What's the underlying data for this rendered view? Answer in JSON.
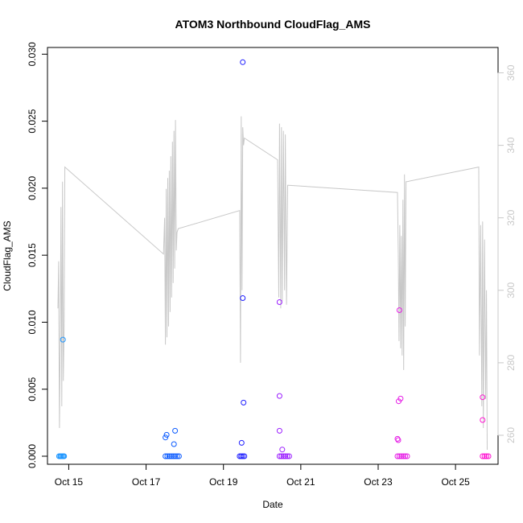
{
  "chart_data": {
    "type": "scatter",
    "title": "ATOM3 Northbound CloudFlag_AMS",
    "xlabel": "Date",
    "ylabel": "CloudFlag_AMS",
    "x_tick_labels": [
      "Oct 15",
      "Oct 17",
      "Oct 19",
      "Oct 21",
      "Oct 23",
      "Oct 25"
    ],
    "x_ticks_day": [
      15,
      17,
      19,
      21,
      23,
      25
    ],
    "xlim_day": [
      14.45,
      26.1
    ],
    "ylim": [
      -0.0006,
      0.0305
    ],
    "y_ticks": [
      0.0,
      0.005,
      0.01,
      0.015,
      0.02,
      0.025,
      0.03
    ],
    "y_tick_labels": [
      "0.000",
      "0.005",
      "0.010",
      "0.015",
      "0.020",
      "0.025",
      "0.030"
    ],
    "right_axis": {
      "ylim": [
        252,
        367
      ],
      "ticks": [
        260,
        280,
        300,
        320,
        340,
        360
      ],
      "tick_labels": [
        "260",
        "280",
        "300",
        "320",
        "340",
        "360"
      ],
      "color": "#c8c8c8"
    },
    "points": [
      {
        "day": 14.85,
        "y": 0.0087,
        "color": "#1e96ff"
      },
      {
        "day": 14.75,
        "y": 0.0,
        "color": "#1e96ff"
      },
      {
        "day": 14.78,
        "y": 0.0,
        "color": "#1e96ff"
      },
      {
        "day": 14.8,
        "y": 0.0,
        "color": "#1e96ff"
      },
      {
        "day": 14.83,
        "y": 0.0,
        "color": "#1e96ff"
      },
      {
        "day": 14.86,
        "y": 0.0,
        "color": "#1e96ff"
      },
      {
        "day": 14.88,
        "y": 0.0,
        "color": "#1e96ff"
      },
      {
        "day": 17.5,
        "y": 0.0014,
        "color": "#0a5aff"
      },
      {
        "day": 17.53,
        "y": 0.0016,
        "color": "#0a5aff"
      },
      {
        "day": 17.75,
        "y": 0.0019,
        "color": "#0a5aff"
      },
      {
        "day": 17.72,
        "y": 0.0009,
        "color": "#0a5aff"
      },
      {
        "day": 17.5,
        "y": 0.0,
        "color": "#0a5aff"
      },
      {
        "day": 17.55,
        "y": 0.0,
        "color": "#0a5aff"
      },
      {
        "day": 17.6,
        "y": 0.0,
        "color": "#0a5aff"
      },
      {
        "day": 17.65,
        "y": 0.0,
        "color": "#0a5aff"
      },
      {
        "day": 17.7,
        "y": 0.0,
        "color": "#0a5aff"
      },
      {
        "day": 17.75,
        "y": 0.0,
        "color": "#0a5aff"
      },
      {
        "day": 17.8,
        "y": 0.0,
        "color": "#0a5aff"
      },
      {
        "day": 17.85,
        "y": 0.0,
        "color": "#0a5aff"
      },
      {
        "day": 19.5,
        "y": 0.0294,
        "color": "#1e1eff"
      },
      {
        "day": 19.5,
        "y": 0.0118,
        "color": "#1e1eff"
      },
      {
        "day": 19.52,
        "y": 0.004,
        "color": "#1e1eff"
      },
      {
        "day": 19.47,
        "y": 0.001,
        "color": "#1e1eff"
      },
      {
        "day": 19.42,
        "y": 0.0,
        "color": "#1e1eff"
      },
      {
        "day": 19.46,
        "y": 0.0,
        "color": "#1e1eff"
      },
      {
        "day": 19.5,
        "y": 0.0,
        "color": "#1e1eff"
      },
      {
        "day": 19.54,
        "y": 0.0,
        "color": "#1e1eff"
      },
      {
        "day": 20.45,
        "y": 0.0115,
        "color": "#9b1eff"
      },
      {
        "day": 20.45,
        "y": 0.0045,
        "color": "#9b1eff"
      },
      {
        "day": 20.45,
        "y": 0.0019,
        "color": "#9b1eff"
      },
      {
        "day": 20.52,
        "y": 0.0005,
        "color": "#9b1eff"
      },
      {
        "day": 20.45,
        "y": 0.0,
        "color": "#9b1eff"
      },
      {
        "day": 20.5,
        "y": 0.0,
        "color": "#9b1eff"
      },
      {
        "day": 20.55,
        "y": 0.0,
        "color": "#9b1eff"
      },
      {
        "day": 20.6,
        "y": 0.0,
        "color": "#9b1eff"
      },
      {
        "day": 20.65,
        "y": 0.0,
        "color": "#9b1eff"
      },
      {
        "day": 20.7,
        "y": 0.0,
        "color": "#9b1eff"
      },
      {
        "day": 23.55,
        "y": 0.0109,
        "color": "#e61ee6"
      },
      {
        "day": 23.58,
        "y": 0.0043,
        "color": "#e61ee6"
      },
      {
        "day": 23.53,
        "y": 0.0041,
        "color": "#e61ee6"
      },
      {
        "day": 23.5,
        "y": 0.0013,
        "color": "#e61ee6"
      },
      {
        "day": 23.52,
        "y": 0.0012,
        "color": "#e61ee6"
      },
      {
        "day": 23.5,
        "y": 0.0,
        "color": "#e61ee6"
      },
      {
        "day": 23.55,
        "y": 0.0,
        "color": "#e61ee6"
      },
      {
        "day": 23.6,
        "y": 0.0,
        "color": "#e61ee6"
      },
      {
        "day": 23.65,
        "y": 0.0,
        "color": "#e61ee6"
      },
      {
        "day": 23.7,
        "y": 0.0,
        "color": "#e61ee6"
      },
      {
        "day": 23.75,
        "y": 0.0,
        "color": "#e61ee6"
      },
      {
        "day": 25.7,
        "y": 0.0044,
        "color": "#ff14d2"
      },
      {
        "day": 25.7,
        "y": 0.0027,
        "color": "#ff14d2"
      },
      {
        "day": 25.7,
        "y": 0.0,
        "color": "#ff14d2"
      },
      {
        "day": 25.75,
        "y": 0.0,
        "color": "#ff14d2"
      },
      {
        "day": 25.8,
        "y": 0.0,
        "color": "#ff14d2"
      },
      {
        "day": 25.85,
        "y": 0.0,
        "color": "#ff14d2"
      }
    ],
    "line": {
      "color": "#c8c8c8",
      "x_day": [
        14.72,
        14.74,
        14.76,
        14.78,
        14.8,
        14.82,
        14.84,
        14.86,
        14.88,
        14.9,
        17.45,
        17.48,
        17.5,
        17.52,
        17.54,
        17.56,
        17.58,
        17.6,
        17.62,
        17.64,
        17.66,
        17.68,
        17.7,
        17.72,
        17.74,
        17.76,
        17.78,
        17.8,
        17.83,
        19.42,
        19.44,
        19.46,
        19.48,
        19.5,
        19.52,
        19.54,
        20.4,
        20.43,
        20.45,
        20.48,
        20.5,
        20.52,
        20.55,
        20.58,
        20.6,
        20.63,
        20.66,
        20.68,
        23.5,
        23.52,
        23.54,
        23.56,
        23.58,
        23.6,
        23.62,
        23.64,
        23.66,
        23.68,
        23.7,
        23.72,
        23.75,
        25.6,
        25.62,
        25.65,
        25.68,
        25.7,
        25.72,
        25.75,
        25.78,
        25.8,
        25.82
      ],
      "y_right": [
        295,
        308,
        262,
        288,
        323,
        268,
        330,
        275,
        290,
        334,
        310,
        320,
        285,
        328,
        287,
        331,
        290,
        333,
        294,
        337,
        298,
        341,
        302,
        344,
        306,
        347,
        311,
        316,
        317,
        322,
        280,
        348,
        300,
        345,
        340,
        342,
        336,
        298,
        346,
        295,
        345,
        297,
        344,
        300,
        343,
        296,
        329,
        329,
        327,
        310,
        286,
        318,
        284,
        315,
        282,
        325,
        278,
        332,
        290,
        330,
        330,
        334,
        282,
        318,
        268,
        319,
        262,
        314,
        270,
        300,
        256
      ]
    }
  }
}
